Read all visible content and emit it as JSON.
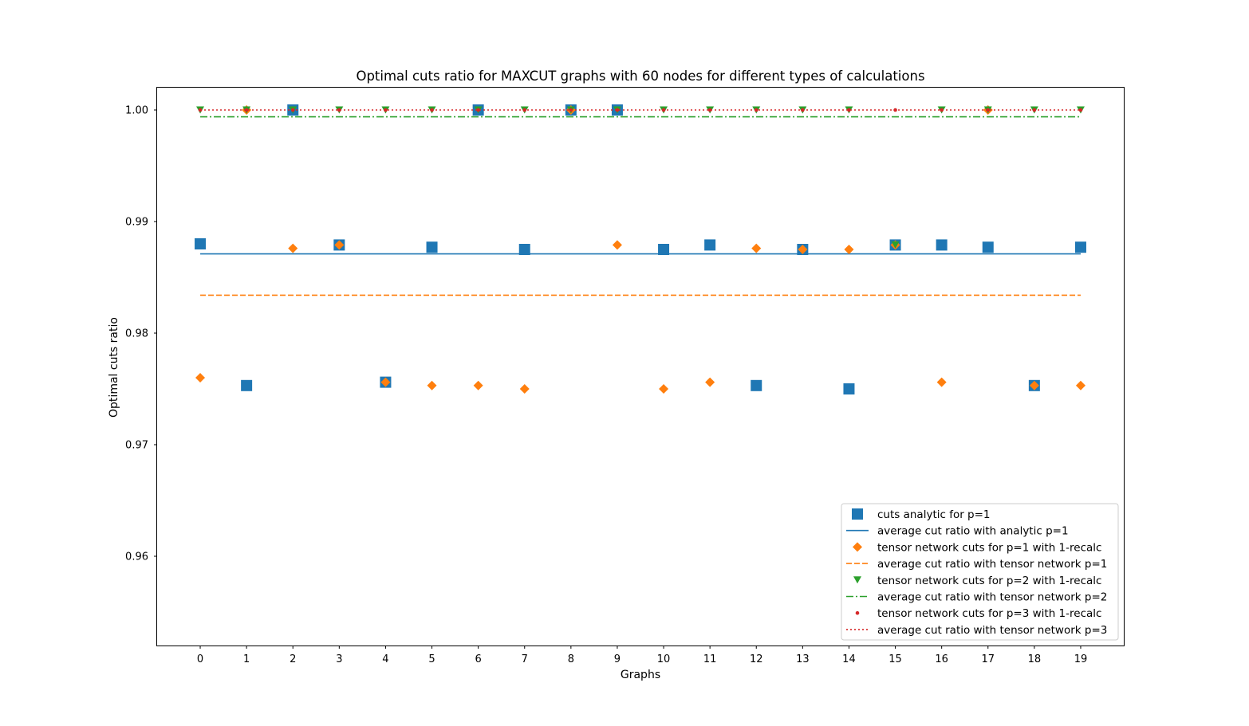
{
  "chart_data": {
    "type": "scatter",
    "title": "Optimal cuts ratio for MAXCUT graphs with 60 nodes for different types of calculations",
    "xlabel": "Graphs",
    "ylabel": "Optimal cuts ratio",
    "x": [
      0,
      1,
      2,
      3,
      4,
      5,
      6,
      7,
      8,
      9,
      10,
      11,
      12,
      13,
      14,
      15,
      16,
      17,
      18,
      19
    ],
    "x_ticks": [
      "0",
      "1",
      "2",
      "3",
      "4",
      "5",
      "6",
      "7",
      "8",
      "9",
      "10",
      "11",
      "12",
      "13",
      "14",
      "15",
      "16",
      "17",
      "18",
      "19"
    ],
    "xlim": [
      -0.93,
      19.93
    ],
    "ylim": [
      0.952,
      1.002
    ],
    "y_ticks": [
      {
        "value": 0.96,
        "label": "0.96"
      },
      {
        "value": 0.97,
        "label": "0.97"
      },
      {
        "value": 0.98,
        "label": "0.98"
      },
      {
        "value": 0.99,
        "label": "0.99"
      },
      {
        "value": 1.0,
        "label": "1.00"
      }
    ],
    "grid": false,
    "legend_position": "lower right",
    "series": [
      {
        "name": "cuts analytic for p=1",
        "kind": "points",
        "marker": "square",
        "color": "#1f77b4",
        "values": [
          0.988,
          0.9753,
          1.0,
          0.9879,
          0.9756,
          0.9877,
          1.0,
          0.9875,
          1.0,
          1.0,
          0.9875,
          0.9879,
          0.9753,
          0.9875,
          0.975,
          0.9879,
          0.9879,
          0.9877,
          0.9753,
          0.9877
        ]
      },
      {
        "name": "average cut ratio with analytic p=1",
        "kind": "line",
        "dash": "solid",
        "color": "#1f77b4",
        "value": 0.9871
      },
      {
        "name": "tensor network cuts for p=1 with 1-recalc",
        "kind": "points",
        "marker": "diamond",
        "color": "#ff7f0e",
        "values": [
          0.976,
          1.0,
          0.9876,
          0.9879,
          0.9756,
          0.9753,
          0.9753,
          0.975,
          1.0,
          0.9879,
          0.975,
          0.9756,
          0.9876,
          0.9875,
          0.9875,
          0.9879,
          0.9756,
          1.0,
          0.9753,
          0.9753
        ]
      },
      {
        "name": "average cut ratio with tensor network p=1",
        "kind": "line",
        "dash": "dashed",
        "color": "#ff7f0e",
        "value": 0.9834
      },
      {
        "name": "tensor network cuts for p=2 with 1-recalc",
        "kind": "points",
        "marker": "triangle-down",
        "color": "#2ca02c",
        "values": [
          1.0,
          1.0,
          1.0,
          1.0,
          1.0,
          1.0,
          1.0,
          1.0,
          1.0,
          1.0,
          1.0,
          1.0,
          1.0,
          1.0,
          1.0,
          0.9879,
          1.0,
          1.0,
          1.0,
          1.0
        ]
      },
      {
        "name": "average cut ratio with tensor network p=2",
        "kind": "line",
        "dash": "dashdot",
        "color": "#2ca02c",
        "value": 0.99939
      },
      {
        "name": "tensor network cuts for p=3 with 1-recalc",
        "kind": "points",
        "marker": "dot",
        "color": "#d62728",
        "values": [
          1.0,
          1.0,
          1.0,
          1.0,
          1.0,
          1.0,
          1.0,
          1.0,
          1.0,
          1.0,
          1.0,
          1.0,
          1.0,
          1.0,
          1.0,
          1.0,
          1.0,
          1.0,
          1.0,
          1.0
        ]
      },
      {
        "name": "average cut ratio with tensor network p=3",
        "kind": "line",
        "dash": "dotted",
        "color": "#d62728",
        "value": 1.0
      }
    ]
  }
}
